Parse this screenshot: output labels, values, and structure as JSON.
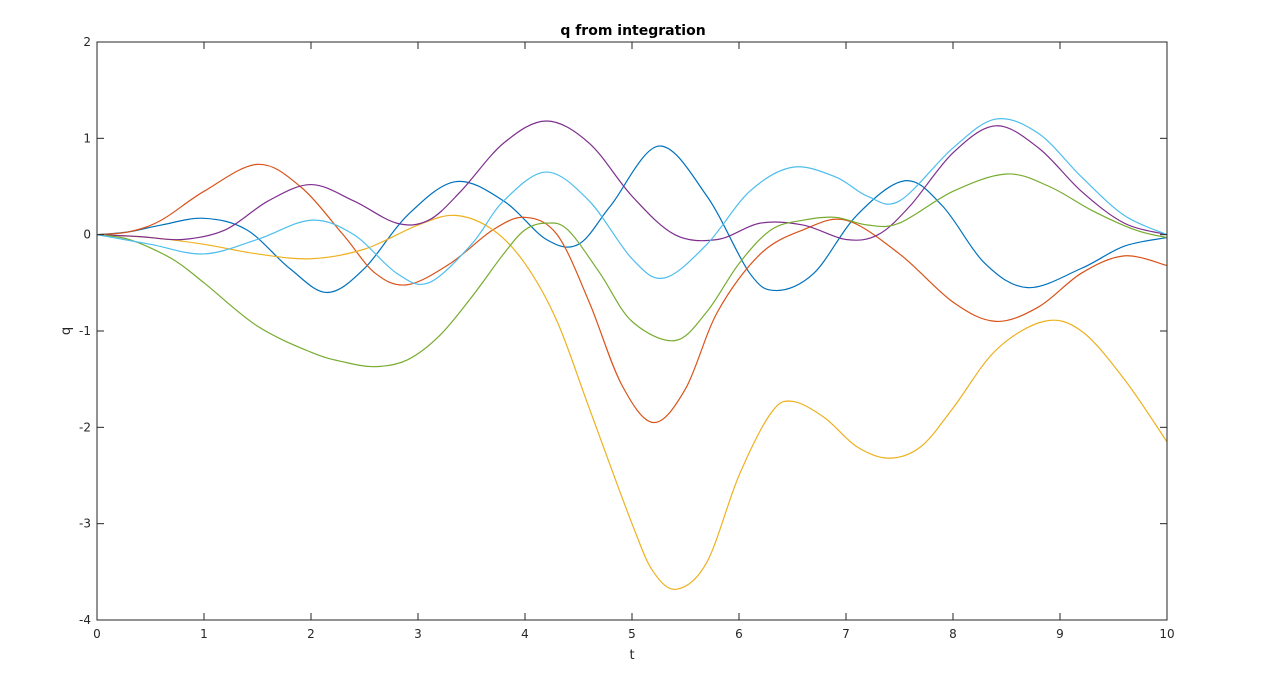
{
  "chart_data": {
    "type": "line",
    "title": "q from integration",
    "xlabel": "t",
    "ylabel": "q",
    "xlim": [
      0,
      10
    ],
    "ylim": [
      -4,
      2
    ],
    "xticks": [
      0,
      1,
      2,
      3,
      4,
      5,
      6,
      7,
      8,
      9,
      10
    ],
    "yticks": [
      -4,
      -3,
      -2,
      -1,
      0,
      1,
      2
    ],
    "grid": false,
    "legend": "none",
    "series": [
      {
        "color": "#0072BD",
        "x": [
          0,
          0.3,
          0.6,
          1.0,
          1.4,
          1.8,
          2.15,
          2.5,
          2.9,
          3.35,
          3.8,
          4.2,
          4.5,
          4.8,
          5.25,
          5.7,
          6.1,
          6.35,
          6.7,
          7.1,
          7.55,
          7.9,
          8.3,
          8.7,
          9.2,
          9.6,
          10.0
        ],
        "y": [
          0,
          0.03,
          0.1,
          0.17,
          0.05,
          -0.35,
          -0.6,
          -0.35,
          0.2,
          0.55,
          0.35,
          -0.05,
          -0.1,
          0.3,
          0.92,
          0.4,
          -0.4,
          -0.58,
          -0.4,
          0.2,
          0.56,
          0.3,
          -0.3,
          -0.55,
          -0.35,
          -0.12,
          -0.03
        ]
      },
      {
        "color": "#D95319",
        "x": [
          0,
          0.3,
          0.6,
          1.0,
          1.5,
          1.9,
          2.3,
          2.6,
          2.9,
          3.3,
          3.7,
          4.0,
          4.3,
          4.6,
          4.9,
          5.2,
          5.5,
          5.8,
          6.2,
          6.6,
          7.0,
          7.5,
          8.0,
          8.4,
          8.8,
          9.2,
          9.6,
          10.0
        ],
        "y": [
          0,
          0.03,
          0.15,
          0.45,
          0.73,
          0.5,
          0.0,
          -0.4,
          -0.52,
          -0.3,
          0.05,
          0.18,
          0.0,
          -0.7,
          -1.55,
          -1.95,
          -1.6,
          -0.8,
          -0.2,
          0.05,
          0.15,
          -0.2,
          -0.7,
          -0.9,
          -0.75,
          -0.4,
          -0.22,
          -0.32
        ]
      },
      {
        "color": "#EDB120",
        "x": [
          0,
          0.5,
          1.0,
          1.5,
          2.0,
          2.5,
          3.0,
          3.35,
          3.7,
          4.0,
          4.3,
          4.6,
          5.0,
          5.2,
          5.42,
          5.7,
          6.0,
          6.3,
          6.5,
          6.8,
          7.1,
          7.4,
          7.7,
          8.0,
          8.4,
          8.85,
          9.2,
          9.6,
          10.0
        ],
        "y": [
          0,
          -0.03,
          -0.1,
          -0.2,
          -0.25,
          -0.15,
          0.1,
          0.2,
          0.05,
          -0.3,
          -0.9,
          -1.8,
          -3.0,
          -3.5,
          -3.68,
          -3.4,
          -2.5,
          -1.85,
          -1.73,
          -1.9,
          -2.2,
          -2.32,
          -2.2,
          -1.8,
          -1.2,
          -0.9,
          -1.0,
          -1.5,
          -2.15
        ]
      },
      {
        "color": "#7E2F8E",
        "x": [
          0,
          0.4,
          0.8,
          1.2,
          1.6,
          2.0,
          2.4,
          2.8,
          3.1,
          3.4,
          3.8,
          4.2,
          4.6,
          5.0,
          5.4,
          5.8,
          6.2,
          6.6,
          7.0,
          7.3,
          7.6,
          8.0,
          8.4,
          8.8,
          9.2,
          9.6,
          10.0
        ],
        "y": [
          0,
          -0.02,
          -0.05,
          0.05,
          0.35,
          0.52,
          0.35,
          0.12,
          0.15,
          0.45,
          0.95,
          1.18,
          0.95,
          0.4,
          0.0,
          -0.05,
          0.12,
          0.1,
          -0.05,
          0.0,
          0.3,
          0.85,
          1.13,
          0.9,
          0.45,
          0.12,
          0.0
        ]
      },
      {
        "color": "#77AC30",
        "x": [
          0,
          0.3,
          0.7,
          1.0,
          1.5,
          2.0,
          2.3,
          2.6,
          2.9,
          3.2,
          3.5,
          3.8,
          4.0,
          4.2,
          4.4,
          4.7,
          5.0,
          5.4,
          5.7,
          6.0,
          6.3,
          6.6,
          6.9,
          7.2,
          7.5,
          8.0,
          8.5,
          8.9,
          9.3,
          9.7,
          10.0
        ],
        "y": [
          0,
          -0.05,
          -0.25,
          -0.5,
          -0.95,
          -1.22,
          -1.32,
          -1.37,
          -1.3,
          -1.05,
          -0.65,
          -0.2,
          0.05,
          0.12,
          0.05,
          -0.4,
          -0.9,
          -1.1,
          -0.8,
          -0.3,
          0.05,
          0.15,
          0.18,
          0.1,
          0.12,
          0.45,
          0.63,
          0.5,
          0.25,
          0.05,
          -0.03
        ]
      },
      {
        "color": "#4DBEEE",
        "x": [
          0,
          0.5,
          1.0,
          1.5,
          2.0,
          2.4,
          2.8,
          3.1,
          3.5,
          3.8,
          4.2,
          4.6,
          5.0,
          5.3,
          5.7,
          6.1,
          6.5,
          6.9,
          7.2,
          7.5,
          8.0,
          8.4,
          8.8,
          9.2,
          9.6,
          10.0
        ],
        "y": [
          0,
          -0.1,
          -0.2,
          -0.05,
          0.15,
          0.0,
          -0.4,
          -0.5,
          -0.1,
          0.35,
          0.65,
          0.35,
          -0.25,
          -0.45,
          -0.1,
          0.45,
          0.7,
          0.6,
          0.4,
          0.35,
          0.9,
          1.2,
          1.05,
          0.6,
          0.2,
          0.0
        ]
      }
    ]
  }
}
